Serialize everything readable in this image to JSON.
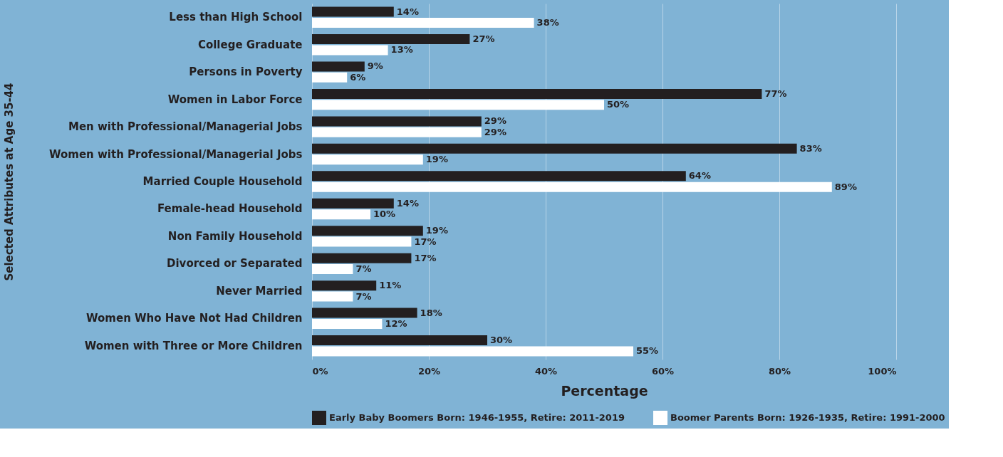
{
  "chart_data": {
    "type": "bar",
    "orientation": "horizontal",
    "ylabel": "Selected Attributes at Age 35-44",
    "xlabel": "Percentage",
    "categories": [
      "Less than High School",
      "College Graduate",
      "Persons in Poverty",
      "Women in Labor Force",
      "Men with Professional/Managerial Jobs",
      "Women with Professional/Managerial Jobs",
      "Married Couple Household",
      "Female-head Household",
      "Non Family Household",
      "Divorced or Separated",
      "Never Married",
      "Women Who Have Not Had Children",
      "Women with Three or More Children"
    ],
    "series": [
      {
        "name": "Early Baby Boomers Born: 1946-1955, Retire: 2011-2019",
        "color": "#231f20",
        "values": [
          14,
          27,
          9,
          77,
          29,
          83,
          64,
          14,
          19,
          17,
          11,
          18,
          30
        ],
        "value_labels": [
          "14%",
          "27%",
          "9%",
          "77%",
          "29%",
          "83%",
          "64%",
          "14%",
          "19%",
          "17%",
          "11%",
          "18%",
          "30%"
        ]
      },
      {
        "name": "Boomer Parents Born: 1926-1935, Retire: 1991-2000",
        "color": "#ffffff",
        "values": [
          38,
          13,
          6,
          50,
          29,
          19,
          89,
          10,
          17,
          7,
          7,
          12,
          55
        ],
        "value_labels": [
          "38%",
          "13%",
          "6%",
          "50%",
          "29%",
          "19%",
          "89%",
          "10%",
          "17%",
          "7%",
          "7%",
          "12%",
          "55%"
        ]
      }
    ],
    "xlim": [
      0,
      100
    ],
    "xticks": [
      {
        "value": 0,
        "label": "0%"
      },
      {
        "value": 20,
        "label": "20%"
      },
      {
        "value": 40,
        "label": "40%"
      },
      {
        "value": 60,
        "label": "60%"
      },
      {
        "value": 80,
        "label": "80%"
      },
      {
        "value": 100,
        "label": "100%"
      }
    ],
    "grid": "x",
    "legend": "bottom"
  }
}
